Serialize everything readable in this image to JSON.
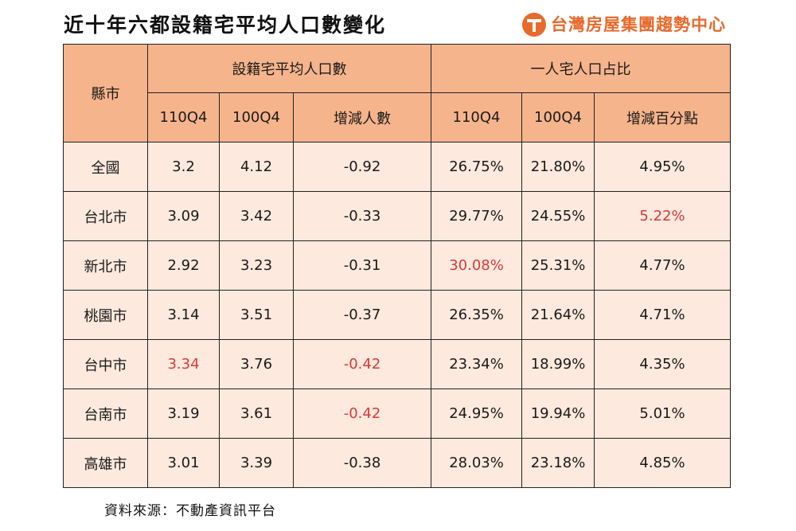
{
  "title": "近十年六都設籍宅平均人口數變化",
  "brand": {
    "name": "台灣房屋集團趨勢中心",
    "accent": "#e8692c"
  },
  "table": {
    "row_header": "縣市",
    "group_headers": [
      "設籍宅平均人口數",
      "一人宅人口占比"
    ],
    "sub_headers": [
      "110Q4",
      "100Q4",
      "增減人數",
      "110Q4",
      "100Q4",
      "增減百分點"
    ],
    "highlight_color": "#d9393a",
    "header_bg": "#f6b48c",
    "body_bg": "#fde9dd",
    "rows": [
      {
        "city": "全國",
        "cells": [
          "3.2",
          "4.12",
          "-0.92",
          "26.75%",
          "21.80%",
          "4.95%"
        ],
        "highlight": []
      },
      {
        "city": "台北市",
        "cells": [
          "3.09",
          "3.42",
          "-0.33",
          "29.77%",
          "24.55%",
          "5.22%"
        ],
        "highlight": [
          5
        ]
      },
      {
        "city": "新北市",
        "cells": [
          "2.92",
          "3.23",
          "-0.31",
          "30.08%",
          "25.31%",
          "4.77%"
        ],
        "highlight": [
          3
        ]
      },
      {
        "city": "桃園市",
        "cells": [
          "3.14",
          "3.51",
          "-0.37",
          "26.35%",
          "21.64%",
          "4.71%"
        ],
        "highlight": []
      },
      {
        "city": "台中市",
        "cells": [
          "3.34",
          "3.76",
          "-0.42",
          "23.34%",
          "18.99%",
          "4.35%"
        ],
        "highlight": [
          0,
          2
        ]
      },
      {
        "city": "台南市",
        "cells": [
          "3.19",
          "3.61",
          "-0.42",
          "24.95%",
          "19.94%",
          "5.01%"
        ],
        "highlight": [
          2
        ]
      },
      {
        "city": "高雄市",
        "cells": [
          "3.01",
          "3.39",
          "-0.38",
          "28.03%",
          "23.18%",
          "4.85%"
        ],
        "highlight": []
      }
    ]
  },
  "source": "資料來源：不動產資訊平台"
}
